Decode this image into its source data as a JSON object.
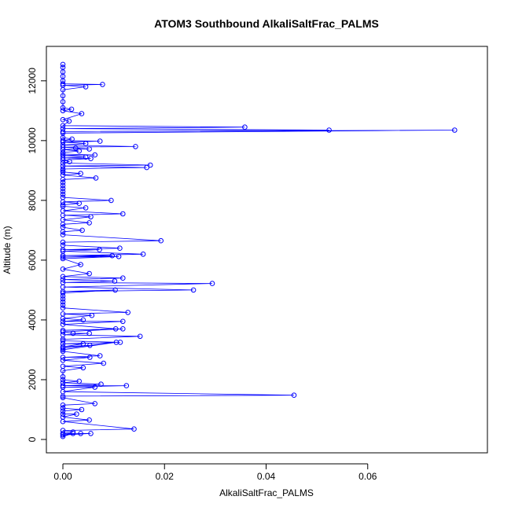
{
  "chart_data": {
    "type": "line",
    "title": "ATOM3 Southbound AlkaliSaltFrac_PALMS",
    "xlabel": "AlkaliSaltFrac_PALMS",
    "ylabel": "Altitude (m)",
    "xlim": [
      0,
      0.08
    ],
    "ylim": [
      0,
      12600
    ],
    "xticks": [
      0,
      0.02,
      0.04,
      0.06
    ],
    "xtick_labels": [
      "0.00",
      "0.02",
      "0.04",
      "0.06"
    ],
    "yticks": [
      0,
      2000,
      4000,
      6000,
      8000,
      10000,
      12000
    ],
    "ytick_labels": [
      "0",
      "2000",
      "4000",
      "6000",
      "8000",
      "10000",
      "12000"
    ],
    "grid": false,
    "series": [
      {
        "color": "#0000ff",
        "marker": "open-circle",
        "points": [
          [
            0.0,
            12550
          ],
          [
            0.0,
            12450
          ],
          [
            0.0,
            12300
          ],
          [
            0.0,
            12150
          ],
          [
            0.0,
            12000
          ],
          [
            0.0,
            11900
          ],
          [
            0.0078,
            11880
          ],
          [
            0.0,
            11850
          ],
          [
            0.0045,
            11800
          ],
          [
            0.0,
            11700
          ],
          [
            0.0,
            11500
          ],
          [
            0.0,
            11300
          ],
          [
            0.0,
            11100
          ],
          [
            0.0017,
            11050
          ],
          [
            0.0,
            11000
          ],
          [
            0.0037,
            10900
          ],
          [
            0.0,
            10700
          ],
          [
            0.0012,
            10650
          ],
          [
            0.0,
            10500
          ],
          [
            0.0358,
            10450
          ],
          [
            0.0,
            10400
          ],
          [
            0.0524,
            10350
          ],
          [
            0.0,
            10300
          ],
          [
            0.0771,
            10350
          ],
          [
            0.0,
            10250
          ],
          [
            0.0,
            10100
          ],
          [
            0.0018,
            10050
          ],
          [
            0.0,
            10000
          ],
          [
            0.0073,
            9980
          ],
          [
            0.0,
            9950
          ],
          [
            0.0045,
            9900
          ],
          [
            0.0,
            9850
          ],
          [
            0.0143,
            9800
          ],
          [
            0.0,
            9780
          ],
          [
            0.0025,
            9750
          ],
          [
            0.0052,
            9720
          ],
          [
            0.0,
            9700
          ],
          [
            0.0032,
            9650
          ],
          [
            0.0,
            9600
          ],
          [
            0.0,
            9550
          ],
          [
            0.0063,
            9520
          ],
          [
            0.0,
            9500
          ],
          [
            0.0045,
            9450
          ],
          [
            0.0,
            9420
          ],
          [
            0.0055,
            9400
          ],
          [
            0.0,
            9350
          ],
          [
            0.0013,
            9300
          ],
          [
            0.0,
            9250
          ],
          [
            0.0172,
            9180
          ],
          [
            0.0,
            9150
          ],
          [
            0.0165,
            9100
          ],
          [
            0.0,
            9050
          ],
          [
            0.0,
            9000
          ],
          [
            0.0,
            8950
          ],
          [
            0.0035,
            8900
          ],
          [
            0.0,
            8850
          ],
          [
            0.0065,
            8750
          ],
          [
            0.0,
            8700
          ],
          [
            0.0,
            8600
          ],
          [
            0.0,
            8500
          ],
          [
            0.0,
            8400
          ],
          [
            0.0,
            8300
          ],
          [
            0.0,
            8200
          ],
          [
            0.0,
            8100
          ],
          [
            0.0095,
            8000
          ],
          [
            0.0,
            7950
          ],
          [
            0.0032,
            7900
          ],
          [
            0.0,
            7850
          ],
          [
            0.0,
            7800
          ],
          [
            0.0045,
            7750
          ],
          [
            0.0,
            7650
          ],
          [
            0.0118,
            7550
          ],
          [
            0.0,
            7500
          ],
          [
            0.0055,
            7450
          ],
          [
            0.0,
            7350
          ],
          [
            0.0052,
            7250
          ],
          [
            0.0,
            7200
          ],
          [
            0.0,
            7100
          ],
          [
            0.0038,
            7000
          ],
          [
            0.0,
            6950
          ],
          [
            0.0,
            6850
          ],
          [
            0.0193,
            6650
          ],
          [
            0.0,
            6600
          ],
          [
            0.0,
            6500
          ],
          [
            0.0112,
            6400
          ],
          [
            0.0,
            6350
          ],
          [
            0.0072,
            6350
          ],
          [
            0.0,
            6300
          ],
          [
            0.0158,
            6200
          ],
          [
            0.0,
            6150
          ],
          [
            0.0097,
            6150
          ],
          [
            0.0,
            6100
          ],
          [
            0.011,
            6120
          ],
          [
            0.0,
            6050
          ],
          [
            0.0035,
            5850
          ],
          [
            0.0,
            5700
          ],
          [
            0.0052,
            5550
          ],
          [
            0.0,
            5450
          ],
          [
            0.0118,
            5400
          ],
          [
            0.0,
            5350
          ],
          [
            0.0102,
            5300
          ],
          [
            0.0,
            5250
          ],
          [
            0.0294,
            5220
          ],
          [
            0.0,
            5100
          ],
          [
            0.0257,
            5000
          ],
          [
            0.0,
            4950
          ],
          [
            0.0103,
            5000
          ],
          [
            0.0,
            4900
          ],
          [
            0.0,
            4800
          ],
          [
            0.0,
            4700
          ],
          [
            0.0,
            4600
          ],
          [
            0.0,
            4500
          ],
          [
            0.0,
            4400
          ],
          [
            0.0128,
            4250
          ],
          [
            0.0,
            4200
          ],
          [
            0.0057,
            4150
          ],
          [
            0.0,
            4050
          ],
          [
            0.004,
            4000
          ],
          [
            0.0,
            3950
          ],
          [
            0.0118,
            3950
          ],
          [
            0.0,
            3850
          ],
          [
            0.0104,
            3700
          ],
          [
            0.0,
            3650
          ],
          [
            0.0118,
            3700
          ],
          [
            0.0,
            3600
          ],
          [
            0.002,
            3550
          ],
          [
            0.0052,
            3550
          ],
          [
            0.0,
            3500
          ],
          [
            0.0152,
            3450
          ],
          [
            0.0,
            3350
          ],
          [
            0.0,
            3300
          ],
          [
            0.0113,
            3250
          ],
          [
            0.0,
            3200
          ],
          [
            0.004,
            3200
          ],
          [
            0.0,
            3100
          ],
          [
            0.0053,
            3150
          ],
          [
            0.0,
            3050
          ],
          [
            0.0105,
            3250
          ],
          [
            0.0,
            3000
          ],
          [
            0.0,
            2950
          ],
          [
            0.0073,
            2800
          ],
          [
            0.0,
            2750
          ],
          [
            0.0053,
            2750
          ],
          [
            0.0,
            2650
          ],
          [
            0.008,
            2550
          ],
          [
            0.0,
            2450
          ],
          [
            0.004,
            2400
          ],
          [
            0.0,
            2300
          ],
          [
            0.0,
            2100
          ],
          [
            0.0,
            2000
          ],
          [
            0.0032,
            1950
          ],
          [
            0.0,
            1900
          ],
          [
            0.0075,
            1850
          ],
          [
            0.0,
            1800
          ],
          [
            0.0125,
            1800
          ],
          [
            0.0,
            1750
          ],
          [
            0.0063,
            1750
          ],
          [
            0.0,
            1600
          ],
          [
            0.0455,
            1480
          ],
          [
            0.0,
            1450
          ],
          [
            0.0,
            1400
          ],
          [
            0.0063,
            1200
          ],
          [
            0.0,
            1150
          ],
          [
            0.0,
            1050
          ],
          [
            0.0037,
            1000
          ],
          [
            0.0,
            950
          ],
          [
            0.0,
            850
          ],
          [
            0.0027,
            850
          ],
          [
            0.0,
            750
          ],
          [
            0.0052,
            650
          ],
          [
            0.0,
            600
          ],
          [
            0.014,
            350
          ],
          [
            0.0,
            300
          ],
          [
            0.002,
            250
          ],
          [
            0.0,
            200
          ],
          [
            0.0035,
            200
          ],
          [
            0.0,
            200
          ],
          [
            0.0055,
            200
          ],
          [
            0.0,
            150
          ],
          [
            0.002,
            200
          ],
          [
            0.0,
            100
          ]
        ]
      }
    ]
  }
}
